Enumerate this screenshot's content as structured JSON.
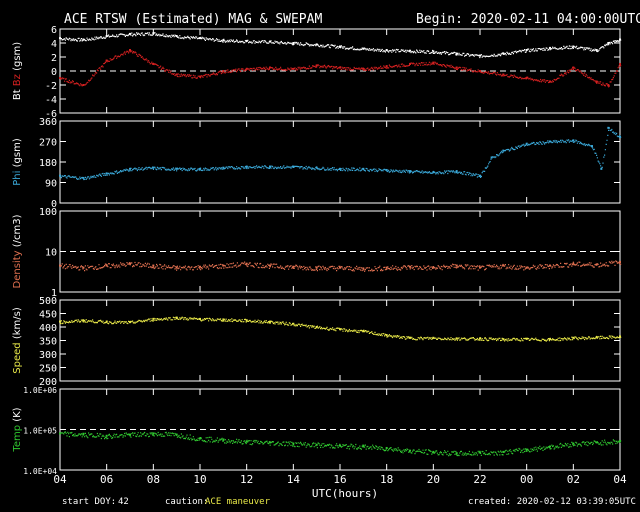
{
  "header": {
    "title": "ACE RTSW (Estimated) MAG & SWEPAM",
    "begin": "Begin: 2020-02-11 04:00:00UTC"
  },
  "footer": {
    "start_doy_label": "start DOY:",
    "start_doy_value": "42",
    "caution_label": "caution:",
    "caution_value": "ACE maneuver",
    "created": "created: 2020-02-12 03:39:05UTC"
  },
  "colors": {
    "background": "#000000",
    "axis": "#ffffff",
    "bt": "#ffffff",
    "bz": "#d42020",
    "phi": "#3aa8d8",
    "density": "#e07050",
    "speed": "#e8e848",
    "temp": "#30c830"
  },
  "chart_data": [
    {
      "type": "scatter",
      "panel": "mag",
      "ylabel_parts": [
        {
          "text": "Bt",
          "color": "#ffffff"
        },
        {
          "text": "Bz",
          "color": "#d42020"
        },
        {
          "text": "(gsm)",
          "color": "#ffffff"
        }
      ],
      "ylim": [
        -6,
        6
      ],
      "yticks": [
        "-6",
        "-4",
        "-2",
        "0",
        "2",
        "4",
        "6"
      ],
      "ytick_values": [
        -6,
        -4,
        -2,
        0,
        2,
        4,
        6
      ],
      "dashed_at": [
        0
      ],
      "series": [
        {
          "name": "Bt",
          "color": "#ffffff",
          "x": [
            0,
            1,
            2,
            3,
            4,
            5,
            6,
            7,
            8,
            9,
            10,
            11,
            12,
            13,
            14,
            15,
            16,
            17,
            18,
            19,
            20,
            21,
            22,
            23,
            23.5,
            24
          ],
          "y": [
            4.7,
            4.5,
            5.0,
            5.3,
            5.4,
            5.0,
            4.7,
            4.4,
            4.3,
            4.2,
            4.0,
            3.8,
            3.5,
            3.2,
            3.0,
            2.9,
            2.8,
            2.5,
            2.2,
            2.5,
            3.0,
            3.3,
            3.5,
            3.0,
            4.0,
            4.5
          ]
        },
        {
          "name": "Bz",
          "color": "#d42020",
          "x": [
            0,
            1,
            2,
            3,
            4,
            5,
            6,
            7,
            8,
            9,
            10,
            11,
            12,
            13,
            14,
            15,
            16,
            17,
            18,
            19,
            20,
            21,
            22,
            23,
            23.5,
            24
          ],
          "y": [
            -1.0,
            -2.0,
            1.5,
            3.0,
            1.0,
            -0.5,
            -0.8,
            0.0,
            0.3,
            0.5,
            0.3,
            0.8,
            0.5,
            0.3,
            0.7,
            1.0,
            1.2,
            0.5,
            0.0,
            -0.5,
            -1.0,
            -1.5,
            0.5,
            -1.5,
            -2.0,
            1.0
          ]
        }
      ]
    },
    {
      "type": "scatter",
      "panel": "phi",
      "ylabel_parts": [
        {
          "text": "Phi",
          "color": "#3aa8d8"
        },
        {
          "text": "(gsm)",
          "color": "#ffffff"
        }
      ],
      "ylim": [
        0,
        360
      ],
      "yticks": [
        "0",
        "90",
        "180",
        "270",
        "360"
      ],
      "ytick_values": [
        0,
        90,
        180,
        270,
        360
      ],
      "series": [
        {
          "name": "Phi",
          "color": "#3aa8d8",
          "x": [
            0,
            1,
            2,
            3,
            4,
            5,
            6,
            7,
            8,
            9,
            10,
            11,
            12,
            13,
            14,
            15,
            16,
            17,
            18,
            18.5,
            19,
            20,
            21,
            22,
            22.8,
            23.2,
            23.5,
            24
          ],
          "y": [
            120,
            110,
            130,
            150,
            155,
            150,
            150,
            155,
            160,
            160,
            160,
            155,
            150,
            150,
            145,
            140,
            135,
            140,
            120,
            200,
            230,
            260,
            270,
            275,
            250,
            150,
            330,
            290
          ]
        }
      ]
    },
    {
      "type": "scatter",
      "panel": "density",
      "ylabel_parts": [
        {
          "text": "Density",
          "color": "#e07050"
        },
        {
          "text": "(/cm3)",
          "color": "#ffffff"
        }
      ],
      "scale": "log",
      "ylim": [
        1,
        100
      ],
      "yticks": [
        "1",
        "10",
        "100"
      ],
      "ytick_values": [
        1,
        10,
        100
      ],
      "dashed_at": [
        10
      ],
      "series": [
        {
          "name": "Density",
          "color": "#e07050",
          "x": [
            0,
            1,
            2,
            3,
            4,
            5,
            6,
            7,
            8,
            9,
            10,
            11,
            12,
            13,
            14,
            15,
            16,
            17,
            18,
            19,
            20,
            21,
            22,
            23,
            24
          ],
          "y": [
            4.5,
            4.0,
            4.5,
            5.0,
            4.5,
            4.0,
            4.2,
            4.5,
            5.0,
            4.5,
            4.2,
            4.0,
            4.0,
            3.8,
            4.0,
            4.2,
            4.0,
            4.5,
            4.0,
            4.5,
            4.0,
            4.5,
            5.0,
            4.8,
            5.5
          ]
        }
      ]
    },
    {
      "type": "scatter",
      "panel": "speed",
      "ylabel_parts": [
        {
          "text": "Speed",
          "color": "#e8e848"
        },
        {
          "text": "(km/s)",
          "color": "#ffffff"
        }
      ],
      "ylim": [
        200,
        500
      ],
      "yticks": [
        "200",
        "250",
        "300",
        "350",
        "400",
        "450",
        "500"
      ],
      "ytick_values": [
        200,
        250,
        300,
        350,
        400,
        450,
        500
      ],
      "series": [
        {
          "name": "Speed",
          "color": "#e8e848",
          "x": [
            0,
            1,
            2,
            3,
            4,
            5,
            6,
            7,
            8,
            9,
            10,
            11,
            12,
            13,
            14,
            15,
            16,
            17,
            18,
            19,
            20,
            21,
            22,
            23,
            24
          ],
          "y": [
            420,
            425,
            420,
            418,
            430,
            435,
            430,
            428,
            425,
            420,
            412,
            400,
            392,
            385,
            370,
            360,
            360,
            358,
            358,
            355,
            356,
            355,
            360,
            362,
            365
          ]
        }
      ]
    },
    {
      "type": "scatter",
      "panel": "temp",
      "ylabel_parts": [
        {
          "text": "Temp",
          "color": "#30c830"
        },
        {
          "text": "(K)",
          "color": "#ffffff"
        }
      ],
      "scale": "log",
      "ylim": [
        10000,
        1000000
      ],
      "yticks": [
        "1.0E+04",
        "1.0E+05",
        "1.0E+06"
      ],
      "ytick_values": [
        10000,
        100000,
        1000000
      ],
      "dashed_at": [
        100000
      ],
      "series": [
        {
          "name": "Temp",
          "color": "#30c830",
          "x": [
            0,
            1,
            2,
            3,
            4,
            5,
            6,
            7,
            8,
            9,
            10,
            11,
            12,
            13,
            14,
            15,
            16,
            17,
            18,
            19,
            20,
            21,
            22,
            23,
            24
          ],
          "y": [
            80000,
            75000,
            70000,
            75000,
            80000,
            75000,
            60000,
            55000,
            50000,
            48000,
            45000,
            42000,
            40000,
            38000,
            35000,
            30000,
            28000,
            26000,
            27000,
            28000,
            32000,
            38000,
            45000,
            48000,
            52000
          ]
        }
      ]
    }
  ],
  "x_axis": {
    "label": "UTC(hours)",
    "ticks": [
      "04",
      "06",
      "08",
      "10",
      "12",
      "14",
      "16",
      "18",
      "20",
      "22",
      "00",
      "02",
      "04"
    ],
    "range_hours": [
      0,
      24
    ]
  }
}
